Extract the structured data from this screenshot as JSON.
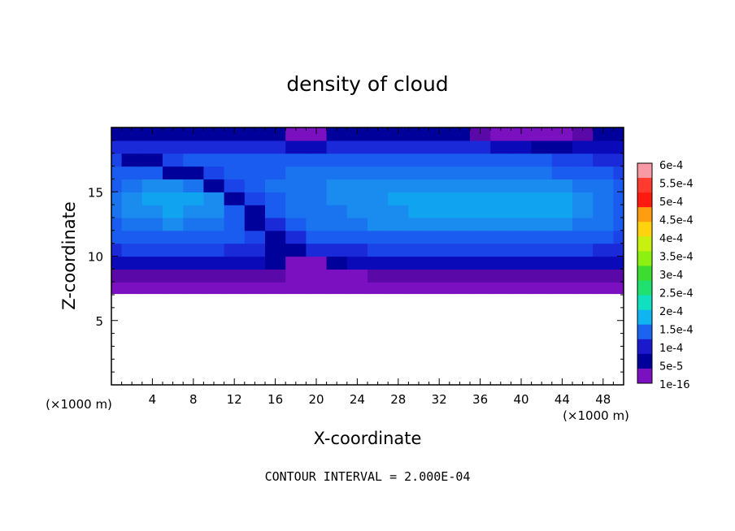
{
  "chart_data": {
    "type": "heatmap",
    "title": "density of cloud",
    "xlabel": "X-coordinate",
    "ylabel": "Z-coordinate",
    "x_unit_left": "(×1000 m)",
    "x_unit_right": "(×1000 m)",
    "xlim": [
      0,
      50
    ],
    "ylim": [
      0,
      20
    ],
    "x_ticks": [
      4,
      8,
      12,
      16,
      20,
      24,
      28,
      32,
      36,
      40,
      44,
      48
    ],
    "x_tick_labels": [
      "4",
      "8",
      "12",
      "16",
      "20",
      "24",
      "28",
      "32",
      "36",
      "40",
      "44",
      "48"
    ],
    "y_ticks": [
      5,
      10,
      15
    ],
    "y_tick_labels": [
      "5",
      "10",
      "15"
    ],
    "footer": "CONTOUR INTERVAL = 2.000E-04",
    "colorbar": {
      "labels": [
        "6e-4",
        "5.5e-4",
        "5e-4",
        "4.5e-4",
        "4e-4",
        "3.5e-4",
        "3e-4",
        "2.5e-4",
        "2e-4",
        "1.5e-4",
        "1e-4",
        "5e-5",
        "1e-16"
      ],
      "colors": [
        "#f79aa6",
        "#ff3b2f",
        "#ff1a10",
        "#ff9d10",
        "#ffd210",
        "#c8f010",
        "#8cf010",
        "#3cdc30",
        "#20e070",
        "#10e0c0",
        "#10b4f0",
        "#1a64f0",
        "#1a1acc",
        "#00009a",
        "#7a10c0"
      ]
    },
    "data_top_z": 7.1,
    "field": {
      "description_values": "cloud density, field values in kg/m3 on a coarse grid",
      "x": [
        0,
        2,
        4,
        6,
        8,
        10,
        12,
        14,
        16,
        18,
        20,
        22,
        24,
        26,
        28,
        30,
        32,
        34,
        36,
        38,
        40,
        42,
        44,
        46,
        48,
        50
      ],
      "z": [
        7.5,
        8.5,
        9.5,
        10.5,
        11.5,
        12.5,
        13.5,
        14.5,
        15.5,
        16.5,
        17.5,
        18.5,
        19.5
      ],
      "values": [
        [
          1e-16,
          1e-16,
          1e-16,
          1e-16,
          1e-16,
          1e-16,
          1e-16,
          1e-16,
          1e-16,
          1e-16,
          1e-16,
          1e-16,
          1e-16,
          1e-16,
          1e-16,
          1e-16,
          1e-16,
          1e-16,
          1e-16,
          1e-16,
          1e-16,
          1e-16,
          1e-16,
          1e-16,
          1e-16,
          1e-16
        ],
        [
          2e-05,
          2e-05,
          2e-05,
          2e-05,
          2e-05,
          2e-05,
          2e-05,
          2e-05,
          2e-05,
          1e-16,
          1e-16,
          1e-16,
          1e-16,
          2e-05,
          2e-05,
          2e-05,
          2e-05,
          2e-05,
          2e-05,
          2e-05,
          2e-05,
          2e-05,
          2e-05,
          2e-05,
          2e-05,
          2e-05
        ],
        [
          6e-05,
          6e-05,
          6e-05,
          6e-05,
          6e-05,
          6e-05,
          5e-05,
          5e-05,
          4e-05,
          1e-16,
          1e-16,
          4e-05,
          6e-05,
          6e-05,
          6e-05,
          6e-05,
          6e-05,
          6e-05,
          6e-05,
          6e-05,
          6e-05,
          6e-05,
          6e-05,
          6e-05,
          5e-05,
          5e-05
        ],
        [
          8e-05,
          9e-05,
          9e-05,
          9e-05,
          9e-05,
          9e-05,
          8e-05,
          7e-05,
          3e-05,
          3e-05,
          7e-05,
          8e-05,
          8e-05,
          9e-05,
          9e-05,
          9e-05,
          9e-05,
          9e-05,
          9e-05,
          9e-05,
          9e-05,
          9e-05,
          9e-05,
          9e-05,
          8e-05,
          7e-05
        ],
        [
          0.0001,
          0.00011,
          0.00011,
          0.00011,
          0.00011,
          0.00011,
          0.000105,
          9e-05,
          3e-05,
          8e-05,
          0.0001,
          0.000105,
          0.00011,
          0.00011,
          0.00011,
          0.00011,
          0.00011,
          0.00011,
          0.00011,
          0.00011,
          0.00011,
          0.00011,
          0.00011,
          0.00011,
          0.0001,
          9e-05
        ],
        [
          0.00011,
          0.00012,
          0.000125,
          0.00013,
          0.000125,
          0.00012,
          0.00011,
          4e-05,
          8e-05,
          0.000105,
          0.000115,
          0.00012,
          0.000125,
          0.00013,
          0.00013,
          0.00013,
          0.000135,
          0.00014,
          0.000135,
          0.00013,
          0.00013,
          0.00013,
          0.00013,
          0.000125,
          0.000115,
          0.0001
        ],
        [
          0.000115,
          0.00013,
          0.00014,
          0.000145,
          0.00014,
          0.00013,
          0.00011,
          3e-05,
          0.0001,
          0.000115,
          0.00012,
          0.000125,
          0.00013,
          0.000135,
          0.00014,
          0.000145,
          0.00015,
          0.00015,
          0.00015,
          0.00015,
          0.00015,
          0.00015,
          0.000145,
          0.000135,
          0.00012,
          0.000105
        ],
        [
          0.000115,
          0.000135,
          0.00015,
          0.000155,
          0.000145,
          0.00013,
          3e-05,
          9e-05,
          0.00011,
          0.00012,
          0.000125,
          0.00013,
          0.000135,
          0.00014,
          0.000145,
          0.00015,
          0.000155,
          0.000155,
          0.000155,
          0.000155,
          0.000155,
          0.00015,
          0.000145,
          0.000135,
          0.00012,
          0.000105
        ],
        [
          0.00011,
          0.000125,
          0.000135,
          0.000135,
          0.000125,
          3e-05,
          9e-05,
          0.00011,
          0.000115,
          0.00012,
          0.000125,
          0.00013,
          0.00013,
          0.000135,
          0.000135,
          0.00014,
          0.00014,
          0.00014,
          0.00014,
          0.00014,
          0.00014,
          0.000135,
          0.00013,
          0.000125,
          0.000115,
          0.0001
        ],
        [
          0.0001,
          0.00011,
          0.00011,
          4e-05,
          3e-05,
          9e-05,
          0.000105,
          0.00011,
          0.00011,
          0.000115,
          0.00012,
          0.00012,
          0.00012,
          0.00012,
          0.00012,
          0.00012,
          0.00012,
          0.00012,
          0.00012,
          0.00012,
          0.00012,
          0.000115,
          0.00011,
          0.000105,
          0.0001,
          9e-05
        ],
        [
          9e-05,
          3e-05,
          3e-05,
          9e-05,
          0.0001,
          0.000105,
          0.000105,
          0.000105,
          0.000105,
          0.000105,
          0.000105,
          0.000105,
          0.000105,
          0.000105,
          0.000105,
          0.000105,
          0.000105,
          0.000105,
          0.000105,
          0.0001,
          0.0001,
          0.0001,
          9e-05,
          9e-05,
          8e-05,
          8e-05
        ],
        [
          7e-05,
          8e-05,
          8e-05,
          8e-05,
          8e-05,
          8e-05,
          8e-05,
          8e-05,
          7e-05,
          6e-05,
          5e-05,
          7e-05,
          8e-05,
          8e-05,
          8e-05,
          8e-05,
          8e-05,
          8e-05,
          7e-05,
          6e-05,
          5e-05,
          4e-05,
          4e-05,
          5e-05,
          6e-05,
          6e-05
        ],
        [
          4e-05,
          4e-05,
          4e-05,
          4e-05,
          4e-05,
          4e-05,
          4e-05,
          4e-05,
          3e-05,
          1e-16,
          1e-16,
          3e-05,
          4e-05,
          4e-05,
          4e-05,
          4e-05,
          4e-05,
          3e-05,
          2e-05,
          1e-16,
          1e-16,
          1e-16,
          1e-16,
          2e-05,
          3e-05,
          3e-05
        ]
      ]
    }
  }
}
